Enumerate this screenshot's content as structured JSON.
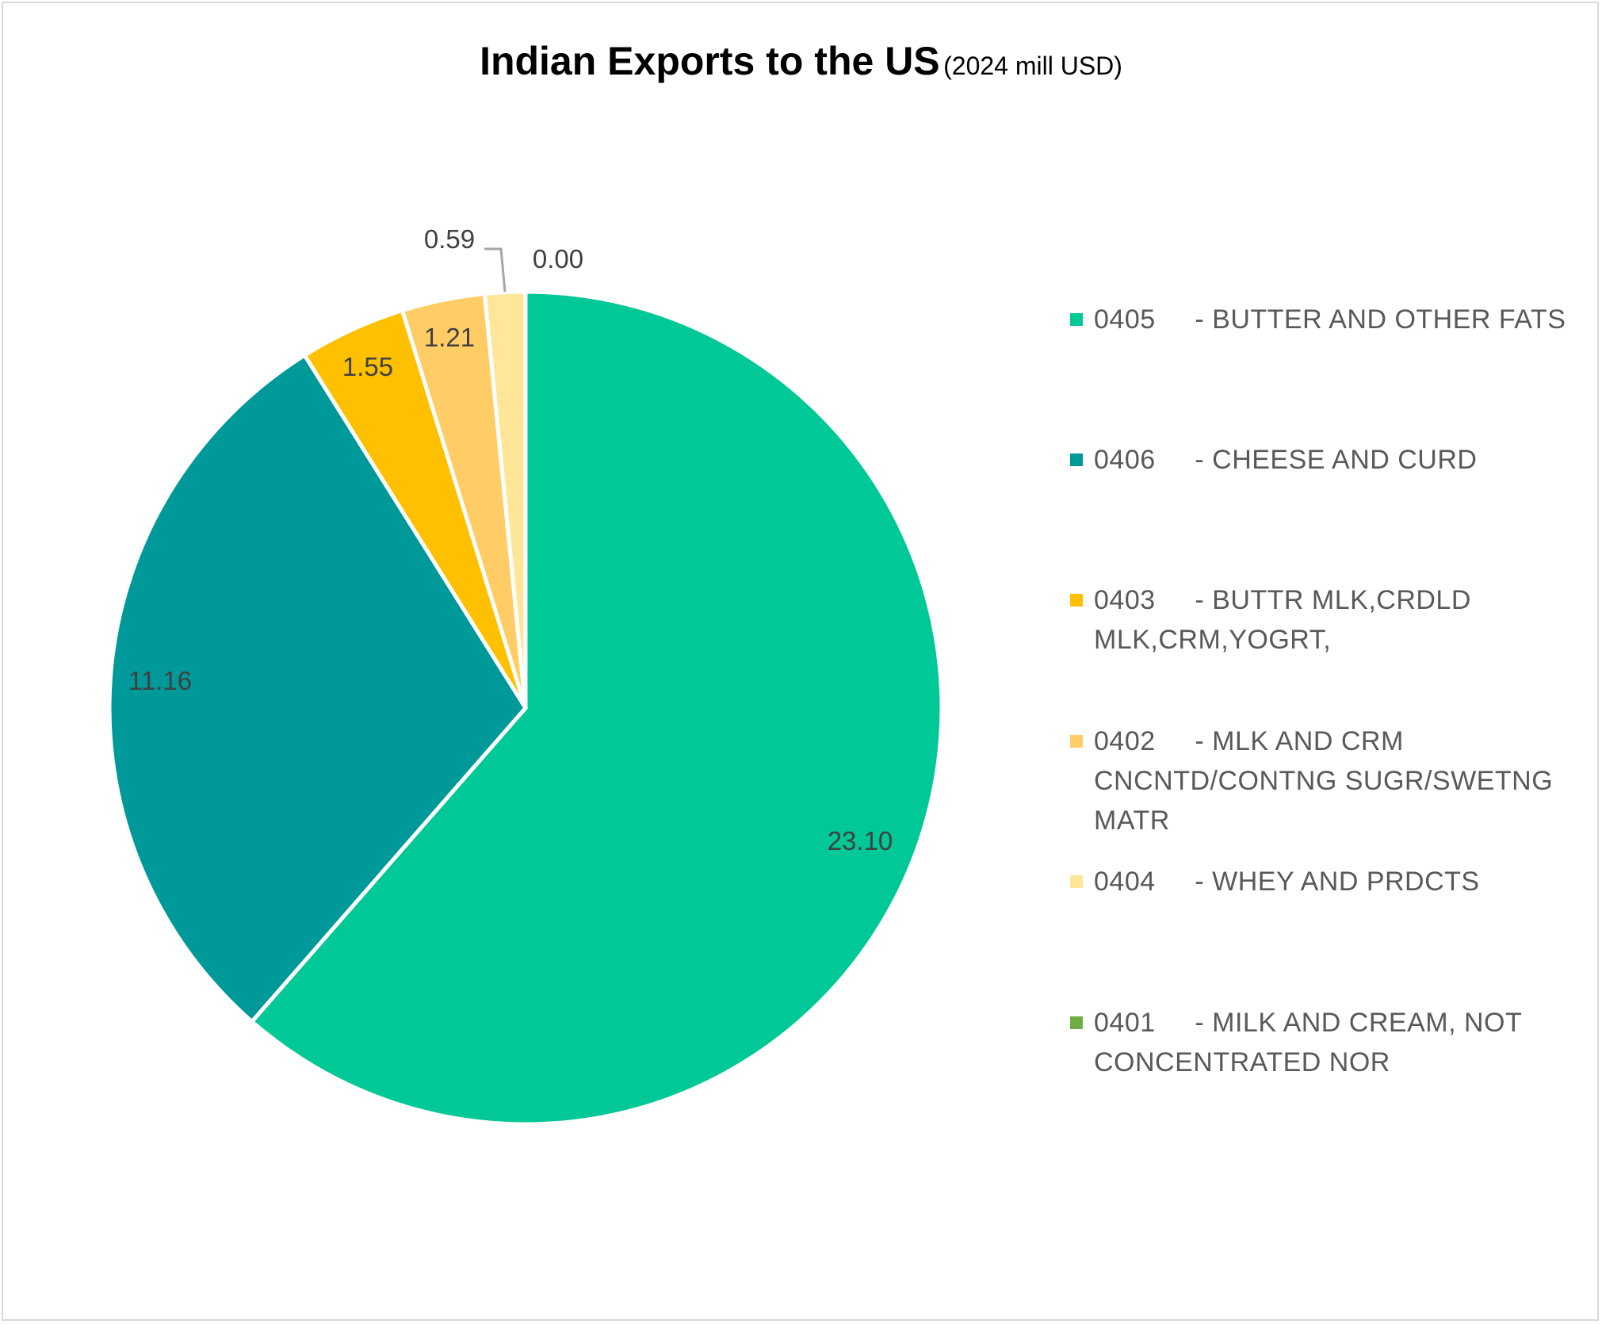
{
  "chart_data": {
    "type": "pie",
    "title": "Indian Exports to the US",
    "subtitle": "(2024 mill USD)",
    "legend_position": "right",
    "slices": [
      {
        "label": "0405     - BUTTER AND OTHER FATS",
        "value": 23.1,
        "data_label": "23.10",
        "color": "#00C896"
      },
      {
        "label": "0406     - CHEESE AND CURD",
        "value": 11.16,
        "data_label": "11.16",
        "color": "#009999"
      },
      {
        "label": "0403     - BUTTR MLK,CRDLD MLK,CRM,YOGRT,",
        "value": 1.55,
        "data_label": "1.55",
        "color": "#FFC000"
      },
      {
        "label": "0402     - MLK AND CRM CNCNTD/CONTNG SUGR/SWETNG MATR",
        "value": 1.21,
        "data_label": "1.21",
        "color": "#FFCC66"
      },
      {
        "label": "0404     - WHEY AND PRDCTS",
        "value": 0.59,
        "data_label": "0.59",
        "color": "#FFE699"
      },
      {
        "label": "0401     - MILK AND CREAM, NOT CONCENTRATED NOR",
        "value": 0.0,
        "data_label": "0.00",
        "color": "#70AD47"
      }
    ]
  }
}
